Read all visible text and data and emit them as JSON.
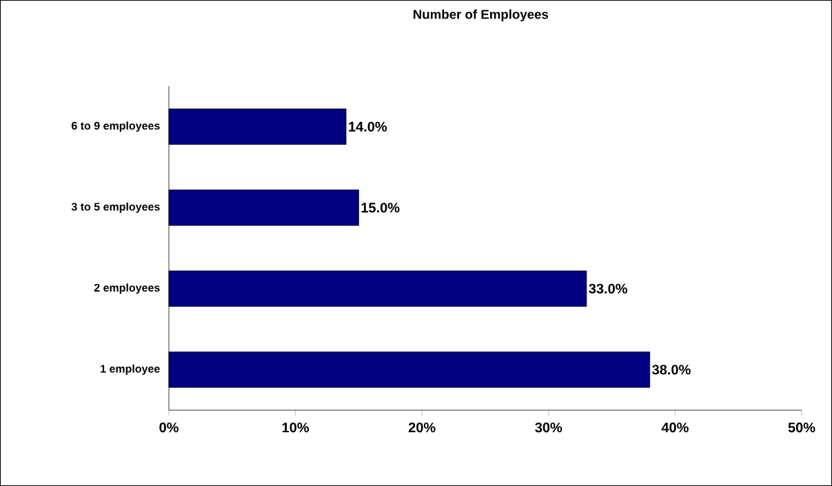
{
  "chart_data": {
    "type": "bar",
    "orientation": "horizontal",
    "title": "Number of Employees",
    "categories": [
      "6 to 9 employees",
      "3 to 5 employees",
      "2 employees",
      "1 employee"
    ],
    "values": [
      14,
      15,
      33,
      38
    ],
    "color": "#000080",
    "value_labels": [
      "14.0%",
      "15.0%",
      "33.0%",
      "38.0%"
    ],
    "xlim": [
      0,
      50
    ],
    "xticks": [
      {
        "value": 0,
        "label": "0%"
      },
      {
        "value": 10,
        "label": "10%"
      },
      {
        "value": 20,
        "label": "20%"
      },
      {
        "value": 30,
        "label": "30%"
      },
      {
        "value": 40,
        "label": "40%"
      },
      {
        "value": 50,
        "label": "50%"
      }
    ]
  }
}
